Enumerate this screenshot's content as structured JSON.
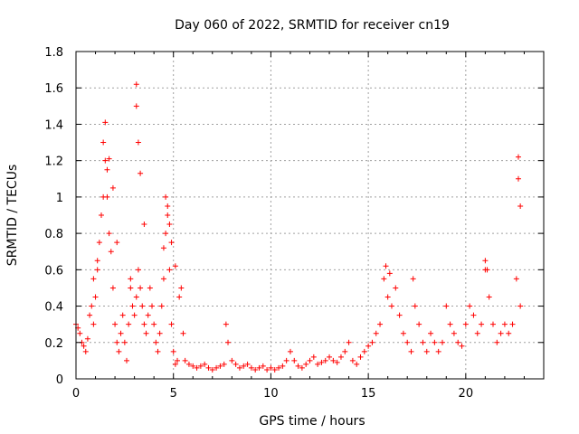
{
  "chart_data": {
    "type": "scatter",
    "title": "Day 060 of 2022, SRMTID for receiver cn19",
    "xlabel": "GPS time / hours",
    "ylabel": "SRMTID / TECUs",
    "xlim": [
      0,
      24
    ],
    "ylim": [
      0,
      1.8
    ],
    "xticks": [
      0,
      5,
      10,
      15,
      20
    ],
    "xtick_labels": [
      "0",
      "5",
      "10",
      "15",
      "20"
    ],
    "yticks": [
      0,
      0.2,
      0.4,
      0.6,
      0.8,
      1,
      1.2,
      1.4,
      1.6,
      1.8
    ],
    "ytick_labels": [
      "0",
      "0.2",
      "0.4",
      "0.6",
      "0.8",
      "1",
      "1.2",
      "1.4",
      "1.6",
      "1.8"
    ],
    "grid": true,
    "marker": "+",
    "series": [
      {
        "name": "SRMTID",
        "color": "#ff0000",
        "x": [
          0.0,
          0.1,
          0.2,
          0.3,
          0.4,
          0.5,
          0.6,
          0.7,
          0.8,
          0.9,
          1.0,
          1.1,
          1.2,
          1.3,
          1.4,
          1.5,
          1.6,
          1.7,
          1.8,
          1.9,
          2.0,
          2.1,
          2.2,
          2.3,
          2.4,
          2.5,
          2.6,
          2.7,
          2.8,
          2.9,
          3.0,
          3.1,
          3.2,
          3.3,
          3.4,
          3.5,
          3.6,
          3.7,
          3.8,
          3.9,
          4.0,
          4.1,
          4.2,
          4.3,
          4.4,
          4.5,
          4.6,
          4.7,
          4.8,
          4.9,
          5.0,
          5.1,
          5.2,
          5.3,
          5.4,
          5.5,
          5.6,
          5.8,
          6.0,
          6.2,
          6.4,
          6.6,
          6.8,
          7.0,
          7.2,
          7.4,
          7.6,
          7.7,
          7.8,
          8.0,
          8.2,
          8.4,
          8.6,
          8.8,
          9.0,
          9.2,
          9.4,
          9.6,
          9.8,
          10.0,
          10.2,
          10.4,
          10.6,
          10.8,
          11.0,
          11.2,
          11.4,
          11.6,
          11.8,
          12.0,
          12.2,
          12.4,
          12.6,
          12.8,
          13.0,
          13.2,
          13.4,
          13.6,
          13.8,
          14.0,
          14.2,
          14.4,
          14.6,
          14.8,
          15.0,
          15.2,
          15.4,
          15.6,
          15.8,
          16.0,
          16.2,
          16.4,
          16.6,
          16.8,
          17.0,
          17.2,
          17.4,
          17.6,
          17.8,
          18.0,
          18.2,
          18.4,
          18.6,
          18.8,
          19.0,
          19.2,
          19.4,
          19.6,
          19.8,
          20.0,
          20.2,
          20.4,
          20.6,
          20.8,
          21.0,
          21.2,
          21.4,
          21.6,
          21.8,
          22.0,
          22.2,
          22.4,
          22.6,
          22.8,
          1.5,
          1.7,
          1.9,
          2.1,
          3.1,
          3.1,
          3.2,
          3.3,
          4.6,
          4.7,
          4.8,
          4.9,
          22.7,
          22.7,
          22.8,
          21.0,
          21.1,
          15.9,
          16.1,
          17.3,
          0.9,
          1.1,
          2.8,
          3.5,
          1.4,
          1.6,
          4.5,
          5.1
        ],
        "y": [
          0.3,
          0.28,
          0.25,
          0.2,
          0.18,
          0.15,
          0.22,
          0.35,
          0.4,
          0.3,
          0.45,
          0.6,
          0.75,
          0.9,
          1.0,
          1.2,
          1.0,
          0.8,
          0.7,
          0.5,
          0.3,
          0.2,
          0.15,
          0.25,
          0.35,
          0.2,
          0.1,
          0.3,
          0.5,
          0.4,
          0.35,
          0.45,
          0.6,
          0.5,
          0.4,
          0.3,
          0.25,
          0.35,
          0.5,
          0.4,
          0.3,
          0.2,
          0.15,
          0.25,
          0.4,
          0.55,
          0.8,
          0.9,
          0.6,
          0.3,
          0.15,
          0.08,
          0.1,
          0.45,
          0.5,
          0.25,
          0.1,
          0.08,
          0.07,
          0.06,
          0.07,
          0.08,
          0.06,
          0.05,
          0.06,
          0.07,
          0.08,
          0.3,
          0.2,
          0.1,
          0.08,
          0.06,
          0.07,
          0.08,
          0.06,
          0.05,
          0.06,
          0.07,
          0.05,
          0.06,
          0.05,
          0.06,
          0.07,
          0.1,
          0.15,
          0.1,
          0.07,
          0.06,
          0.08,
          0.1,
          0.12,
          0.08,
          0.09,
          0.1,
          0.12,
          0.1,
          0.09,
          0.12,
          0.15,
          0.2,
          0.1,
          0.08,
          0.12,
          0.15,
          0.18,
          0.2,
          0.25,
          0.3,
          0.55,
          0.45,
          0.4,
          0.5,
          0.35,
          0.25,
          0.2,
          0.15,
          0.4,
          0.3,
          0.2,
          0.15,
          0.25,
          0.2,
          0.15,
          0.2,
          0.4,
          0.3,
          0.25,
          0.2,
          0.18,
          0.3,
          0.4,
          0.35,
          0.25,
          0.3,
          0.6,
          0.45,
          0.3,
          0.2,
          0.25,
          0.3,
          0.25,
          0.3,
          0.55,
          0.4,
          1.41,
          1.21,
          1.05,
          0.75,
          1.62,
          1.5,
          1.3,
          1.13,
          1.0,
          0.95,
          0.85,
          0.75,
          1.22,
          1.1,
          0.95,
          0.65,
          0.6,
          0.62,
          0.58,
          0.55,
          0.55,
          0.65,
          0.55,
          0.85,
          1.3,
          1.15,
          0.72,
          0.62
        ]
      }
    ]
  }
}
